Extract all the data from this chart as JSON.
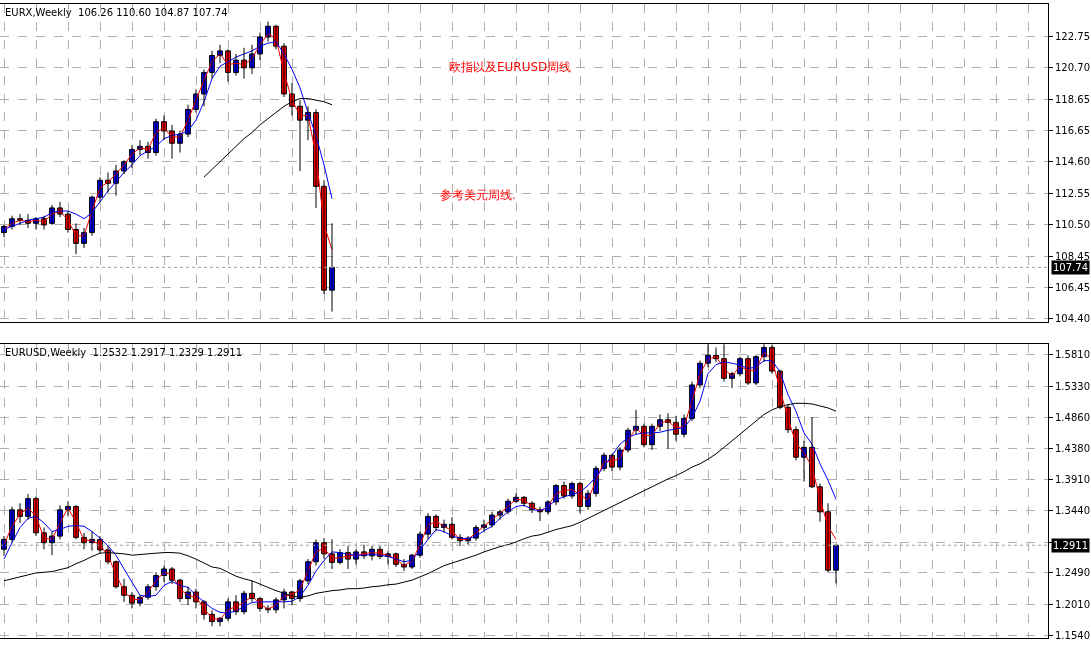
{
  "chart_data": [
    {
      "type": "candlestick",
      "title": "EURX,Weekly  106.26 110.60 104.87 107.74",
      "annotations": [
        "欧指以及EURUSD周线",
        "参考美元周线."
      ],
      "categories": [
        null,
        null,
        null,
        null,
        null,
        null,
        null,
        null,
        null,
        null,
        null,
        null,
        null,
        null,
        null,
        null,
        null,
        null,
        null,
        null,
        null,
        null,
        null,
        null,
        null,
        null,
        null,
        null,
        null,
        null,
        null,
        null,
        null,
        null,
        null,
        null,
        null,
        null,
        null,
        null,
        null,
        null,
        null,
        null,
        null,
        null,
        null,
        null,
        null,
        null,
        null,
        null,
        null,
        null,
        null,
        null,
        null,
        null,
        null,
        null,
        null,
        null,
        null,
        null,
        null,
        null,
        null,
        null,
        null,
        null,
        null,
        null,
        null,
        null,
        null,
        null,
        null,
        null,
        null,
        null,
        null,
        null,
        null,
        null,
        null,
        null,
        null,
        null,
        null,
        null,
        null,
        null,
        null,
        null,
        null,
        null,
        null,
        null,
        null,
        null,
        null,
        null,
        null,
        null,
        null,
        null,
        null,
        null,
        null,
        null,
        null,
        null,
        null,
        null,
        null,
        null,
        null,
        null,
        null,
        null,
        null,
        null,
        null,
        null,
        null,
        null,
        null,
        null,
        null,
        null,
        null
      ],
      "ohlc": [
        [
          110.0,
          110.5,
          109.7,
          110.4
        ],
        [
          110.4,
          111.1,
          110.2,
          110.9
        ],
        [
          110.9,
          111.2,
          110.5,
          110.8
        ],
        [
          110.8,
          111.2,
          110.3,
          110.6
        ],
        [
          110.6,
          111.0,
          110.2,
          110.9
        ],
        [
          110.9,
          111.1,
          110.2,
          110.5
        ],
        [
          110.6,
          111.8,
          110.5,
          111.6
        ],
        [
          111.6,
          112.0,
          111.0,
          111.2
        ],
        [
          111.2,
          111.4,
          110.0,
          110.2
        ],
        [
          110.2,
          110.6,
          108.6,
          109.3
        ],
        [
          109.3,
          110.3,
          109.0,
          110.0
        ],
        [
          110.0,
          112.4,
          109.8,
          112.3
        ],
        [
          112.3,
          113.6,
          112.0,
          113.4
        ],
        [
          113.4,
          113.9,
          112.6,
          113.2
        ],
        [
          113.2,
          114.4,
          112.4,
          114.0
        ],
        [
          114.0,
          114.7,
          113.8,
          114.6
        ],
        [
          114.6,
          115.7,
          114.2,
          115.4
        ],
        [
          115.4,
          116.0,
          115.0,
          115.6
        ],
        [
          115.6,
          115.9,
          114.8,
          115.2
        ],
        [
          115.2,
          117.4,
          115.0,
          117.2
        ],
        [
          117.2,
          117.6,
          116.0,
          116.6
        ],
        [
          116.6,
          117.0,
          114.8,
          115.8
        ],
        [
          115.8,
          116.6,
          115.2,
          116.4
        ],
        [
          116.4,
          118.3,
          116.2,
          118.0
        ],
        [
          118.0,
          119.3,
          117.8,
          119.0
        ],
        [
          119.0,
          120.6,
          118.2,
          120.4
        ],
        [
          120.4,
          121.8,
          120.0,
          121.5
        ],
        [
          121.5,
          122.2,
          121.0,
          121.8
        ],
        [
          121.8,
          121.9,
          119.8,
          120.4
        ],
        [
          120.4,
          121.6,
          120.2,
          121.2
        ],
        [
          121.2,
          122.0,
          120.0,
          120.7
        ],
        [
          120.7,
          122.2,
          120.3,
          121.6
        ],
        [
          121.6,
          123.0,
          121.2,
          122.7
        ],
        [
          122.7,
          123.7,
          122.4,
          123.4
        ],
        [
          123.4,
          123.5,
          121.9,
          122.1
        ],
        [
          122.1,
          122.3,
          118.8,
          119.0
        ],
        [
          119.0,
          119.7,
          117.6,
          118.2
        ],
        [
          118.2,
          118.6,
          114.0,
          117.3
        ],
        [
          117.3,
          118.2,
          116.0,
          117.8
        ],
        [
          117.8,
          118.0,
          111.6,
          113.0
        ],
        [
          113.0,
          113.4,
          106.0,
          106.26
        ],
        [
          106.26,
          110.6,
          104.87,
          107.74
        ],
        null,
        null,
        null,
        null,
        null,
        null,
        null,
        null,
        null,
        null,
        null,
        null,
        null,
        null,
        null,
        null,
        null,
        null,
        null,
        null,
        null,
        null,
        null,
        null,
        null,
        null,
        null,
        null,
        null,
        null,
        null,
        null,
        null,
        null,
        null,
        null,
        null,
        null,
        null,
        null,
        null,
        null,
        null,
        null,
        null,
        null,
        null,
        null,
        null,
        null,
        null,
        null,
        null,
        null,
        null,
        null,
        null,
        null,
        null,
        null,
        null,
        null,
        null,
        null,
        null,
        null,
        null,
        null,
        null,
        null,
        null,
        null,
        null,
        null,
        null,
        null,
        null,
        null,
        null,
        null,
        null,
        null,
        null,
        null,
        null,
        null,
        null,
        null,
        null
      ],
      "series": [
        {
          "type": "line",
          "color": "#ff0000",
          "values": [
            110.2,
            110.6,
            110.8,
            110.7,
            110.8,
            110.7,
            111.2,
            111.4,
            110.8,
            109.8,
            109.8,
            111.4,
            112.9,
            113.3,
            113.8,
            114.4,
            115.1,
            115.5,
            115.4,
            116.5,
            116.8,
            116.2,
            116.2,
            117.3,
            118.6,
            119.9,
            121.1,
            121.6,
            120.9,
            121.0,
            120.9,
            121.3,
            122.2,
            122.9,
            122.6,
            120.4,
            118.6,
            117.6,
            117.6,
            115.0,
            110.5,
            108.9,
            null,
            null,
            null,
            null,
            null,
            null,
            null,
            null,
            null,
            null,
            null,
            null,
            null,
            null,
            null,
            null,
            null,
            null,
            null,
            null,
            null,
            null,
            null,
            null,
            null,
            null,
            null,
            null,
            null,
            null,
            null,
            null,
            null,
            null,
            null,
            null,
            null,
            null,
            null,
            null,
            null,
            null,
            null,
            null,
            null,
            null,
            null,
            null,
            null,
            null,
            null,
            null,
            null,
            null,
            null,
            null,
            null,
            null,
            null,
            null,
            null,
            null,
            null,
            null,
            null,
            null,
            null,
            null,
            null,
            null,
            null,
            null,
            null,
            null,
            null,
            null,
            null,
            null,
            null,
            null,
            null,
            null,
            null,
            null,
            null,
            null,
            null,
            null,
            null
          ]
        },
        {
          "type": "line",
          "color": "#0000ff",
          "values": [
            110.2,
            110.4,
            110.6,
            110.8,
            110.9,
            111.0,
            111.3,
            111.4,
            111.4,
            111.2,
            110.9,
            111.3,
            112.0,
            112.7,
            113.3,
            113.9,
            114.4,
            115.0,
            115.3,
            115.6,
            116.1,
            116.3,
            116.4,
            116.6,
            117.3,
            118.5,
            120.0,
            120.8,
            121.1,
            121.4,
            121.6,
            121.8,
            122.1,
            122.3,
            122.4,
            121.6,
            120.6,
            119.4,
            117.8,
            116.3,
            114.4,
            112.2,
            null,
            null,
            null,
            null,
            null,
            null,
            null,
            null,
            null,
            null,
            null,
            null,
            null,
            null,
            null,
            null,
            null,
            null,
            null,
            null,
            null,
            null,
            null,
            null,
            null,
            null,
            null,
            null,
            null,
            null,
            null,
            null,
            null,
            null,
            null,
            null,
            null,
            null,
            null,
            null,
            null,
            null,
            null,
            null,
            null,
            null,
            null,
            null,
            null,
            null,
            null,
            null,
            null,
            null,
            null,
            null,
            null,
            null,
            null,
            null,
            null,
            null,
            null,
            null,
            null,
            null,
            null,
            null,
            null,
            null,
            null,
            null,
            null,
            null,
            null,
            null,
            null,
            null,
            null,
            null,
            null,
            null,
            null,
            null,
            null,
            null,
            null,
            null,
            null
          ]
        },
        {
          "type": "line",
          "color": "#000000",
          "values": [
            null,
            null,
            null,
            null,
            null,
            null,
            null,
            null,
            null,
            null,
            null,
            null,
            null,
            null,
            null,
            null,
            null,
            null,
            null,
            null,
            null,
            null,
            null,
            null,
            null,
            113.6,
            114.1,
            114.6,
            115.1,
            115.6,
            116.1,
            116.5,
            117.0,
            117.4,
            117.8,
            118.2,
            118.5,
            118.7,
            118.7,
            118.6,
            118.5,
            118.3,
            null,
            null,
            null,
            null,
            null,
            null,
            null,
            null,
            null,
            null,
            null,
            null,
            null,
            null,
            null,
            null,
            null,
            null,
            null,
            null,
            null,
            null,
            null,
            null,
            null,
            null,
            null,
            null,
            null,
            null,
            null,
            null,
            null,
            null,
            null,
            null,
            null,
            null,
            null,
            null,
            null,
            null,
            null,
            null,
            null,
            null,
            null,
            null,
            null,
            null,
            null,
            null,
            null,
            null,
            null,
            null,
            null,
            null,
            null,
            null,
            null,
            null,
            null,
            null,
            null,
            null,
            null,
            null,
            null,
            null,
            null,
            null,
            null,
            null,
            null,
            null,
            null,
            null,
            null,
            null,
            null,
            null,
            null,
            null,
            null,
            null,
            null,
            null,
            null
          ]
        }
      ],
      "ylim": [
        104.2,
        124.85
      ],
      "yticks": [
        {
          "value": 104.4,
          "label": "104.40"
        },
        {
          "value": 106.45,
          "label": "106.45"
        },
        {
          "value": 108.45,
          "label": "108.45"
        },
        {
          "value": 110.5,
          "label": "110.50"
        },
        {
          "value": 112.55,
          "label": "112.55"
        },
        {
          "value": 114.6,
          "label": "114.60"
        },
        {
          "value": 116.65,
          "label": "116.65"
        },
        {
          "value": 118.65,
          "label": "118.65"
        },
        {
          "value": 120.7,
          "label": "120.70"
        },
        {
          "value": 122.75,
          "label": "122.75"
        }
      ],
      "ref_lines": [
        {
          "axis": "y",
          "value": 107.74,
          "label": "107.74",
          "color": "#a0a0a0",
          "line_style": "dotted"
        }
      ],
      "tick_labels": "y",
      "grid": true
    },
    {
      "type": "candlestick",
      "title": "EURUSD,Weekly  1.2532 1.2917 1.2329 1.2911",
      "categories": [
        null,
        null,
        null,
        null,
        null,
        null,
        null,
        null,
        null,
        null,
        null,
        null,
        null,
        null,
        null,
        null,
        null,
        null,
        null,
        null,
        null,
        null,
        null,
        null,
        null,
        null,
        null,
        null,
        null,
        null,
        null,
        null,
        null,
        null,
        null,
        null,
        null,
        null,
        null,
        null,
        null,
        null,
        null,
        null,
        null,
        null,
        null,
        null,
        null,
        null,
        null,
        null,
        null,
        null,
        null,
        null,
        null,
        null,
        null,
        null,
        null,
        null,
        null,
        null,
        null,
        null,
        null,
        null,
        null,
        null,
        null,
        null,
        null,
        null,
        null,
        null,
        null,
        null,
        null,
        null,
        null,
        null,
        null,
        null,
        null,
        null,
        null,
        null,
        null,
        null,
        null,
        null,
        null,
        null,
        null,
        null,
        null,
        null,
        null,
        null,
        null,
        null,
        null,
        null,
        null,
        null,
        null,
        null,
        null,
        null,
        null,
        null,
        null,
        null,
        null,
        null,
        null,
        null,
        null,
        null,
        null,
        null,
        null,
        null,
        null,
        null,
        null,
        null,
        null,
        null,
        null
      ],
      "ohlc": [
        [
          1.285,
          1.305,
          1.275,
          1.3
        ],
        [
          1.3,
          1.35,
          1.295,
          1.345
        ],
        [
          1.345,
          1.355,
          1.325,
          1.335
        ],
        [
          1.335,
          1.369,
          1.33,
          1.362
        ],
        [
          1.362,
          1.365,
          1.305,
          1.31
        ],
        [
          1.31,
          1.318,
          1.285,
          1.295
        ],
        [
          1.295,
          1.312,
          1.276,
          1.305
        ],
        [
          1.305,
          1.352,
          1.3,
          1.345
        ],
        [
          1.345,
          1.358,
          1.335,
          1.35
        ],
        [
          1.35,
          1.352,
          1.3,
          1.303
        ],
        [
          1.303,
          1.31,
          1.285,
          1.295
        ],
        [
          1.295,
          1.312,
          1.283,
          1.3
        ],
        [
          1.3,
          1.305,
          1.278,
          1.284
        ],
        [
          1.284,
          1.29,
          1.262,
          1.266
        ],
        [
          1.266,
          1.268,
          1.225,
          1.228
        ],
        [
          1.228,
          1.24,
          1.205,
          1.215
        ],
        [
          1.215,
          1.22,
          1.195,
          1.203
        ],
        [
          1.203,
          1.215,
          1.198,
          1.212
        ],
        [
          1.212,
          1.232,
          1.208,
          1.228
        ],
        [
          1.228,
          1.25,
          1.222,
          1.245
        ],
        [
          1.245,
          1.26,
          1.235,
          1.255
        ],
        [
          1.255,
          1.258,
          1.232,
          1.238
        ],
        [
          1.238,
          1.24,
          1.205,
          1.21
        ],
        [
          1.21,
          1.228,
          1.2,
          1.22
        ],
        [
          1.22,
          1.225,
          1.195,
          1.205
        ],
        [
          1.205,
          1.208,
          1.178,
          1.186
        ],
        [
          1.186,
          1.192,
          1.168,
          1.175
        ],
        [
          1.175,
          1.182,
          1.168,
          1.18
        ],
        [
          1.18,
          1.21,
          1.176,
          1.205
        ],
        [
          1.205,
          1.215,
          1.185,
          1.19
        ],
        [
          1.19,
          1.222,
          1.186,
          1.218
        ],
        [
          1.218,
          1.237,
          1.205,
          1.21
        ],
        [
          1.21,
          1.212,
          1.19,
          1.195
        ],
        [
          1.195,
          1.2,
          1.188,
          1.193
        ],
        [
          1.193,
          1.212,
          1.188,
          1.208
        ],
        [
          1.208,
          1.225,
          1.195,
          1.22
        ],
        [
          1.22,
          1.222,
          1.2,
          1.21
        ],
        [
          1.21,
          1.24,
          1.205,
          1.237
        ],
        [
          1.237,
          1.27,
          1.232,
          1.266
        ],
        [
          1.266,
          1.3,
          1.26,
          1.295
        ],
        [
          1.295,
          1.302,
          1.27,
          1.278
        ],
        [
          1.278,
          1.3,
          1.255,
          1.265
        ],
        [
          1.265,
          1.285,
          1.262,
          1.28
        ],
        [
          1.28,
          1.29,
          1.255,
          1.27
        ],
        [
          1.27,
          1.285,
          1.262,
          1.281
        ],
        [
          1.281,
          1.292,
          1.27,
          1.275
        ],
        [
          1.275,
          1.29,
          1.268,
          1.285
        ],
        [
          1.285,
          1.29,
          1.27,
          1.274
        ],
        [
          1.274,
          1.282,
          1.262,
          1.278
        ],
        [
          1.278,
          1.28,
          1.258,
          1.262
        ],
        [
          1.262,
          1.27,
          1.252,
          1.258
        ],
        [
          1.258,
          1.278,
          1.255,
          1.276
        ],
        [
          1.276,
          1.312,
          1.272,
          1.308
        ],
        [
          1.308,
          1.34,
          1.3,
          1.335
        ],
        [
          1.335,
          1.338,
          1.312,
          1.318
        ],
        [
          1.318,
          1.33,
          1.31,
          1.323
        ],
        [
          1.323,
          1.334,
          1.3,
          1.303
        ],
        [
          1.303,
          1.308,
          1.29,
          1.298
        ],
        [
          1.298,
          1.305,
          1.292,
          1.302
        ],
        [
          1.302,
          1.322,
          1.298,
          1.318
        ],
        [
          1.318,
          1.33,
          1.312,
          1.322
        ],
        [
          1.322,
          1.342,
          1.318,
          1.337
        ],
        [
          1.337,
          1.345,
          1.33,
          1.342
        ],
        [
          1.342,
          1.362,
          1.338,
          1.358
        ],
        [
          1.358,
          1.37,
          1.355,
          1.364
        ],
        [
          1.364,
          1.366,
          1.35,
          1.355
        ],
        [
          1.355,
          1.358,
          1.34,
          1.345
        ],
        [
          1.345,
          1.35,
          1.328,
          1.342
        ],
        [
          1.342,
          1.36,
          1.338,
          1.357
        ],
        [
          1.357,
          1.384,
          1.352,
          1.382
        ],
        [
          1.382,
          1.388,
          1.362,
          1.366
        ],
        [
          1.366,
          1.388,
          1.362,
          1.385
        ],
        [
          1.385,
          1.388,
          1.34,
          1.35
        ],
        [
          1.35,
          1.375,
          1.345,
          1.37
        ],
        [
          1.37,
          1.412,
          1.365,
          1.408
        ],
        [
          1.408,
          1.432,
          1.404,
          1.428
        ],
        [
          1.428,
          1.43,
          1.404,
          1.41
        ],
        [
          1.41,
          1.44,
          1.405,
          1.436
        ],
        [
          1.436,
          1.47,
          1.432,
          1.466
        ],
        [
          1.466,
          1.497,
          1.46,
          1.472
        ],
        [
          1.472,
          1.476,
          1.44,
          1.444
        ],
        [
          1.444,
          1.476,
          1.436,
          1.472
        ],
        [
          1.472,
          1.49,
          1.465,
          1.482
        ],
        [
          1.482,
          1.492,
          1.438,
          1.478
        ],
        [
          1.478,
          1.488,
          1.45,
          1.46
        ],
        [
          1.46,
          1.49,
          1.455,
          1.484
        ],
        [
          1.484,
          1.54,
          1.48,
          1.535
        ],
        [
          1.535,
          1.572,
          1.53,
          1.568
        ],
        [
          1.568,
          1.6,
          1.562,
          1.58
        ],
        [
          1.58,
          1.592,
          1.57,
          1.575
        ],
        [
          1.575,
          1.602,
          1.54,
          1.545
        ],
        [
          1.545,
          1.555,
          1.53,
          1.552
        ],
        [
          1.552,
          1.578,
          1.548,
          1.575
        ],
        [
          1.575,
          1.58,
          1.535,
          1.538
        ],
        [
          1.538,
          1.58,
          1.535,
          1.578
        ],
        [
          1.578,
          1.602,
          1.57,
          1.592
        ],
        [
          1.592,
          1.596,
          1.552,
          1.556
        ],
        [
          1.556,
          1.558,
          1.498,
          1.501
        ],
        [
          1.501,
          1.505,
          1.462,
          1.467
        ],
        [
          1.467,
          1.472,
          1.42,
          1.425
        ],
        [
          1.425,
          1.45,
          1.388,
          1.44
        ],
        [
          1.44,
          1.486,
          1.378,
          1.38
        ],
        [
          1.38,
          1.385,
          1.327,
          1.342
        ],
        [
          1.342,
          1.355,
          1.25,
          1.2532
        ],
        [
          1.2532,
          1.2917,
          1.2329,
          1.2911
        ],
        null,
        null,
        null,
        null,
        null,
        null,
        null,
        null,
        null,
        null,
        null,
        null,
        null,
        null,
        null,
        null,
        null,
        null,
        null,
        null,
        null,
        null,
        null,
        null,
        null,
        null
      ],
      "series": [
        {
          "type": "line",
          "color": "#ff0000",
          "values": [
            1.292,
            1.32,
            1.338,
            1.348,
            1.335,
            1.302,
            1.3,
            1.325,
            1.348,
            1.326,
            1.299,
            1.298,
            1.292,
            1.275,
            1.247,
            1.221,
            1.209,
            1.208,
            1.22,
            1.237,
            1.25,
            1.246,
            1.224,
            1.215,
            1.212,
            1.195,
            1.18,
            1.178,
            1.193,
            1.198,
            1.204,
            1.214,
            1.202,
            1.194,
            1.2,
            1.214,
            1.215,
            1.224,
            1.252,
            1.281,
            1.287,
            1.271,
            1.272,
            1.275,
            1.276,
            1.278,
            1.28,
            1.279,
            1.276,
            1.27,
            1.26,
            1.267,
            1.292,
            1.322,
            1.327,
            1.32,
            1.313,
            1.3,
            1.3,
            1.31,
            1.32,
            1.33,
            1.34,
            1.35,
            1.361,
            1.36,
            1.35,
            1.343,
            1.35,
            1.37,
            1.374,
            1.376,
            1.368,
            1.36,
            1.39,
            1.418,
            1.419,
            1.423,
            1.451,
            1.469,
            1.458,
            1.458,
            1.477,
            1.48,
            1.469,
            1.472,
            1.51,
            1.552,
            1.574,
            1.578,
            1.56,
            1.548,
            1.564,
            1.556,
            1.558,
            1.585,
            1.574,
            1.528,
            1.484,
            1.446,
            1.432,
            1.41,
            1.361,
            1.32,
            1.3,
            null,
            null,
            null,
            null,
            null,
            null,
            null,
            null,
            null,
            null,
            null,
            null,
            null,
            null,
            null,
            null,
            null,
            null,
            null,
            null,
            null,
            null,
            null,
            null,
            null,
            null
          ]
        },
        {
          "type": "line",
          "color": "#0000ff",
          "values": [
            1.27,
            1.295,
            1.318,
            1.332,
            1.335,
            1.325,
            1.312,
            1.315,
            1.32,
            1.321,
            1.32,
            1.312,
            1.302,
            1.29,
            1.276,
            1.255,
            1.235,
            1.215,
            1.213,
            1.215,
            1.23,
            1.236,
            1.23,
            1.227,
            1.215,
            1.205,
            1.195,
            1.189,
            1.188,
            1.191,
            1.198,
            1.204,
            1.205,
            1.205,
            1.205,
            1.205,
            1.206,
            1.213,
            1.23,
            1.252,
            1.268,
            1.281,
            1.28,
            1.277,
            1.276,
            1.276,
            1.277,
            1.276,
            1.274,
            1.27,
            1.266,
            1.268,
            1.284,
            1.3,
            1.315,
            1.312,
            1.305,
            1.302,
            1.301,
            1.305,
            1.313,
            1.32,
            1.332,
            1.342,
            1.35,
            1.352,
            1.346,
            1.343,
            1.35,
            1.36,
            1.365,
            1.368,
            1.372,
            1.382,
            1.395,
            1.411,
            1.428,
            1.445,
            1.455,
            1.46,
            1.462,
            1.462,
            1.463,
            1.466,
            1.468,
            1.47,
            1.485,
            1.51,
            1.552,
            1.566,
            1.57,
            1.568,
            1.565,
            1.56,
            1.562,
            1.572,
            1.572,
            1.555,
            1.52,
            1.495,
            1.462,
            1.445,
            1.415,
            1.39,
            1.361,
            null,
            null,
            null,
            null,
            null,
            null,
            null,
            null,
            null,
            null,
            null,
            null,
            null,
            null,
            null,
            null,
            null,
            null,
            null,
            null,
            null,
            null,
            null,
            null,
            null,
            null
          ]
        },
        {
          "type": "line",
          "color": "#000000",
          "values": [
            1.237,
            1.24,
            1.243,
            1.246,
            1.249,
            1.25,
            1.251,
            1.254,
            1.257,
            1.263,
            1.268,
            1.274,
            1.279,
            1.28,
            1.279,
            1.278,
            1.276,
            1.277,
            1.278,
            1.279,
            1.28,
            1.28,
            1.279,
            1.275,
            1.27,
            1.264,
            1.258,
            1.256,
            1.25,
            1.244,
            1.24,
            1.237,
            1.232,
            1.227,
            1.222,
            1.218,
            1.214,
            1.212,
            1.214,
            1.218,
            1.22,
            1.222,
            1.223,
            1.225,
            1.225,
            1.226,
            1.228,
            1.229,
            1.231,
            1.232,
            1.235,
            1.238,
            1.243,
            1.248,
            1.254,
            1.26,
            1.264,
            1.268,
            1.272,
            1.276,
            1.281,
            1.285,
            1.289,
            1.292,
            1.296,
            1.301,
            1.305,
            1.307,
            1.311,
            1.315,
            1.318,
            1.321,
            1.326,
            1.332,
            1.338,
            1.344,
            1.35,
            1.356,
            1.362,
            1.368,
            1.374,
            1.38,
            1.386,
            1.392,
            1.397,
            1.403,
            1.41,
            1.415,
            1.422,
            1.43,
            1.44,
            1.45,
            1.46,
            1.47,
            1.48,
            1.49,
            1.497,
            1.502,
            1.505,
            1.507,
            1.507,
            1.506,
            1.503,
            1.5,
            1.495,
            null,
            null,
            null,
            null,
            null,
            null,
            null,
            null,
            null,
            null,
            null,
            null,
            null,
            null,
            null,
            null,
            null,
            null,
            null,
            null,
            null,
            null,
            null,
            null,
            null,
            null
          ]
        }
      ],
      "ylim": [
        1.15,
        1.597
      ],
      "yticks": [
        {
          "value": 1.154,
          "label": "1.1540"
        },
        {
          "value": 1.201,
          "label": "1.2010"
        },
        {
          "value": 1.249,
          "label": "1.2490"
        },
        {
          "value": 1.296,
          "label": null
        },
        {
          "value": 1.344,
          "label": "1.3440"
        },
        {
          "value": 1.391,
          "label": "1.3910"
        },
        {
          "value": 1.438,
          "label": "1.4380"
        },
        {
          "value": 1.486,
          "label": "1.4860"
        },
        {
          "value": 1.533,
          "label": "1.5330"
        },
        {
          "value": 1.581,
          "label": "1.5810"
        }
      ],
      "ref_lines": [
        {
          "axis": "y",
          "value": 1.2911,
          "label": "1.2911",
          "color": "#a0a0a0",
          "line_style": "dotted"
        }
      ],
      "tick_labels": "y",
      "grid": true
    }
  ]
}
